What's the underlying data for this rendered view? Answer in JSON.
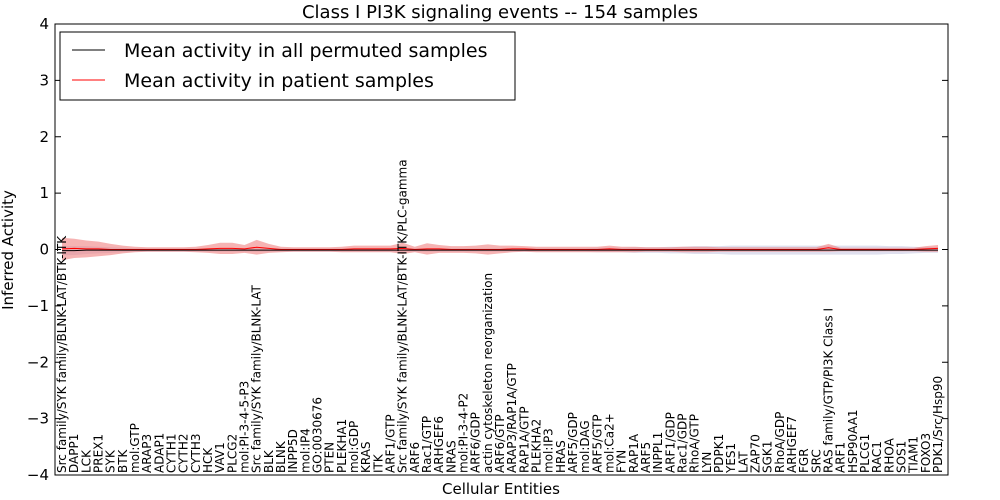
{
  "chart_data": {
    "type": "line",
    "title": "Class I PI3K signaling events -- 154 samples",
    "xlabel": "Cellular Entities",
    "ylabel": "Inferred Activity",
    "ylim": [
      -4,
      4
    ],
    "yticks": [
      "−4",
      "−3",
      "−2",
      "−1",
      "0",
      "1",
      "2",
      "3",
      "4"
    ],
    "ytick_values": [
      -4,
      -3,
      -2,
      -1,
      0,
      1,
      2,
      3,
      4
    ],
    "legend": {
      "position": "top-left",
      "entries": [
        {
          "label": "Mean activity in all permuted samples",
          "color": "#000000"
        },
        {
          "label": "Mean activity in patient samples",
          "color": "#ff0000"
        }
      ]
    },
    "categories": [
      "Src family/SYK family/BLNK-LAT/BTK-ITK",
      "DAPP1",
      "LCK",
      "PREX1",
      "SYK",
      "BTK",
      "mol:GTP",
      "ARAP3",
      "ADAP1",
      "CYTH1",
      "CYTH2",
      "CYTH3",
      "HCK",
      "VAV1",
      "PLCG2",
      "mol:PI-3-4-5-P3",
      "Src family/SYK family/BLNK-LAT",
      "BLK",
      "BLNK",
      "INPP5D",
      "mol:IP4",
      "GO:0030676",
      "PTEN",
      "PLEKHA1",
      "mol:GDP",
      "KRAS",
      "ITK",
      "ARF1/GTP",
      "Src family/SYK family/BLNK-LAT/BTK-ITK/PLC-gamma",
      "ARF6",
      "Rac1/GTP",
      "ARHGEF6",
      "NRAS",
      "mol:PI-3-4-P2",
      "ARF6/GDP",
      "actin cytoskeleton reorganization",
      "ARF6/GTP",
      "ARAP3/RAP1A/GTP",
      "RAP1A/GTP",
      "PLEKHA2",
      "mol:IP3",
      "HRAS",
      "ARF5/GDP",
      "mol:DAG",
      "ARF5/GTP",
      "mol:Ca2+",
      "FYN",
      "RAP1A",
      "ARF5",
      "INPPL1",
      "ARF1/GDP",
      "Rac1/GDP",
      "RhoA/GTP",
      "LYN",
      "PDPK1",
      "YES1",
      "LAT",
      "ZAP70",
      "SGK1",
      "RhoA/GDP",
      "ARHGEF7",
      "FGR",
      "SRC",
      "RAS family/GTP/PI3K Class I",
      "ARF1",
      "HSP90AA1",
      "PLCG1",
      "RAC1",
      "RHOA",
      "SOS1",
      "TIAM1",
      "FOXO3",
      "PDK1/Src/Hsp90"
    ],
    "series": [
      {
        "name": "Mean activity in all permuted samples",
        "color": "#000000",
        "values": [
          -0.02,
          -0.02,
          -0.01,
          -0.01,
          -0.01,
          -0.01,
          -0.01,
          -0.01,
          -0.01,
          -0.01,
          -0.01,
          -0.01,
          -0.01,
          -0.01,
          -0.01,
          -0.01,
          -0.01,
          -0.01,
          -0.01,
          -0.01,
          -0.01,
          -0.01,
          -0.01,
          -0.01,
          -0.01,
          -0.01,
          -0.01,
          -0.01,
          -0.01,
          -0.01,
          -0.01,
          -0.01,
          -0.01,
          -0.01,
          -0.01,
          -0.01,
          -0.01,
          -0.01,
          -0.01,
          -0.01,
          -0.01,
          -0.01,
          -0.01,
          -0.01,
          -0.01,
          -0.01,
          -0.01,
          -0.01,
          -0.01,
          -0.01,
          -0.01,
          -0.01,
          -0.01,
          -0.01,
          -0.01,
          -0.01,
          -0.01,
          -0.01,
          -0.01,
          -0.01,
          -0.01,
          -0.01,
          -0.01,
          -0.01,
          -0.01,
          -0.01,
          -0.01,
          -0.01,
          -0.01,
          -0.01,
          -0.01,
          -0.01,
          -0.01
        ],
        "band": [
          0.08,
          0.08,
          0.07,
          0.06,
          0.05,
          0.04,
          0.03,
          0.03,
          0.03,
          0.03,
          0.03,
          0.03,
          0.03,
          0.03,
          0.03,
          0.03,
          0.03,
          0.03,
          0.03,
          0.03,
          0.03,
          0.03,
          0.03,
          0.03,
          0.03,
          0.03,
          0.03,
          0.03,
          0.03,
          0.03,
          0.03,
          0.03,
          0.03,
          0.03,
          0.03,
          0.03,
          0.03,
          0.03,
          0.03,
          0.03,
          0.03,
          0.03,
          0.03,
          0.03,
          0.04,
          0.04,
          0.04,
          0.05,
          0.05,
          0.05,
          0.06,
          0.06,
          0.07,
          0.07,
          0.07,
          0.08,
          0.08,
          0.08,
          0.08,
          0.08,
          0.08,
          0.08,
          0.08,
          0.08,
          0.08,
          0.08,
          0.08,
          0.08,
          0.07,
          0.07,
          0.06,
          0.05,
          0.05
        ]
      },
      {
        "name": "Mean activity in patient samples",
        "color": "#ff0000",
        "values": [
          0.01,
          0.02,
          0.01,
          0.01,
          0.0,
          0.0,
          0.0,
          0.0,
          0.0,
          0.0,
          0.0,
          0.0,
          0.01,
          0.02,
          0.02,
          0.01,
          0.04,
          0.02,
          0.0,
          0.0,
          0.0,
          0.0,
          0.0,
          0.0,
          0.01,
          0.01,
          0.01,
          0.01,
          0.02,
          0.0,
          0.01,
          0.01,
          0.0,
          0.0,
          0.0,
          0.0,
          0.0,
          0.01,
          0.01,
          0.0,
          0.0,
          0.0,
          0.0,
          0.0,
          0.0,
          0.01,
          0.0,
          0.0,
          0.0,
          0.0,
          0.0,
          0.0,
          0.0,
          0.0,
          0.0,
          0.0,
          0.0,
          0.0,
          0.0,
          0.0,
          0.0,
          0.0,
          0.0,
          0.03,
          0.0,
          0.0,
          0.0,
          0.0,
          0.0,
          0.0,
          0.0,
          0.01,
          0.02
        ],
        "band": [
          0.2,
          0.17,
          0.15,
          0.13,
          0.1,
          0.07,
          0.05,
          0.04,
          0.04,
          0.04,
          0.04,
          0.05,
          0.07,
          0.1,
          0.1,
          0.07,
          0.13,
          0.08,
          0.05,
          0.04,
          0.04,
          0.04,
          0.04,
          0.05,
          0.06,
          0.06,
          0.06,
          0.06,
          0.1,
          0.05,
          0.1,
          0.07,
          0.06,
          0.06,
          0.07,
          0.09,
          0.07,
          0.06,
          0.05,
          0.05,
          0.05,
          0.05,
          0.05,
          0.05,
          0.05,
          0.06,
          0.05,
          0.05,
          0.04,
          0.04,
          0.04,
          0.05,
          0.05,
          0.05,
          0.04,
          0.04,
          0.04,
          0.04,
          0.04,
          0.04,
          0.04,
          0.04,
          0.04,
          0.07,
          0.03,
          0.03,
          0.03,
          0.03,
          0.03,
          0.03,
          0.03,
          0.05,
          0.06
        ]
      }
    ]
  }
}
